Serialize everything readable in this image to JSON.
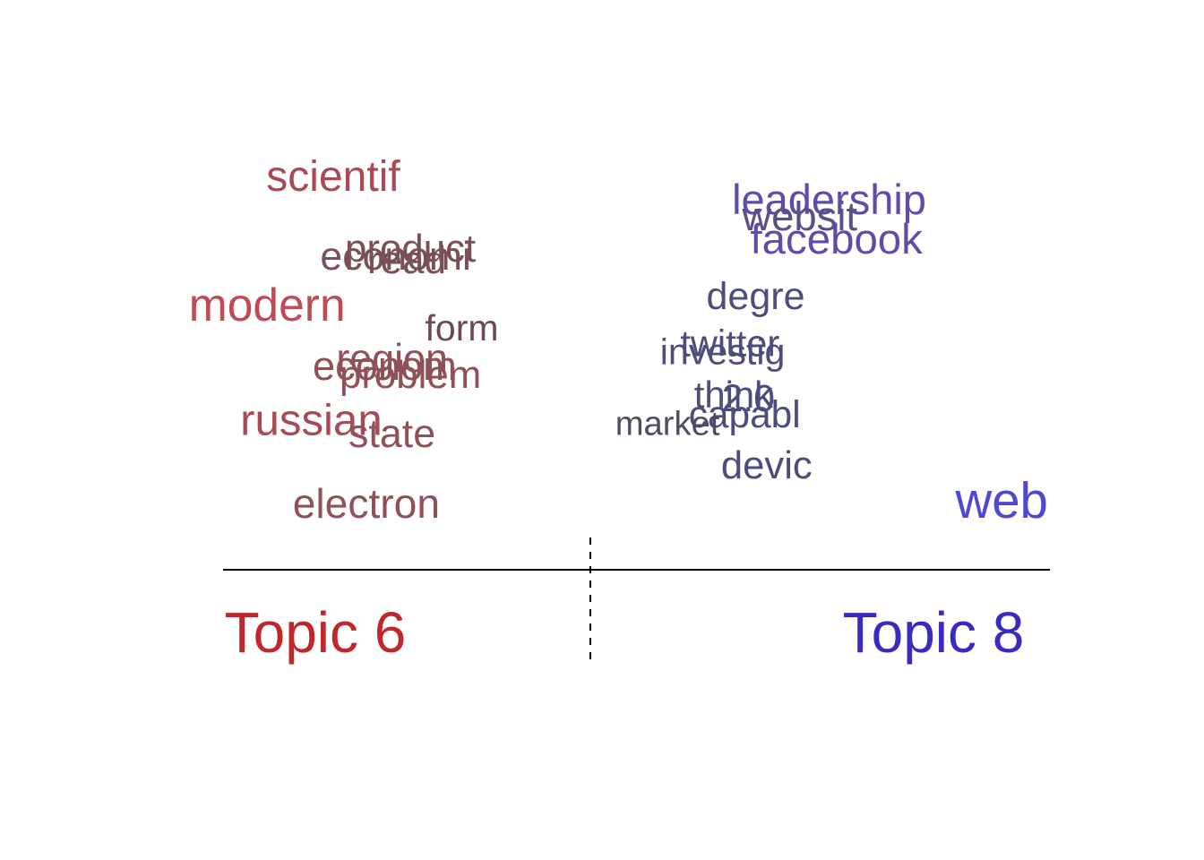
{
  "chart_data": {
    "type": "scatter",
    "description_kind": "word-contrast",
    "xlim": [
      -1,
      1
    ],
    "ylim": [
      0,
      1
    ],
    "grid": false,
    "topic_left": {
      "label": "Topic 6",
      "color": "#C0272D"
    },
    "topic_right": {
      "label": "Topic 8",
      "color": "#3A2BC0"
    },
    "words": [
      {
        "word": "scientif",
        "x": -0.7,
        "y": 0.88,
        "color": "#A84A55"
      },
      {
        "word": "leadership",
        "x": 0.65,
        "y": 0.82,
        "color": "#5A4EA8"
      },
      {
        "word": "websit",
        "x": 0.57,
        "y": 0.78,
        "color": "#565283"
      },
      {
        "word": "facebook",
        "x": 0.67,
        "y": 0.72,
        "color": "#5A4EA8"
      },
      {
        "word": "product",
        "x": -0.49,
        "y": 0.7,
        "color": "#7A5058"
      },
      {
        "word": "economi",
        "x": -0.53,
        "y": 0.68,
        "color": "#7A5058"
      },
      {
        "word": "read",
        "x": -0.5,
        "y": 0.67,
        "color": "#7A5058"
      },
      {
        "word": "degre",
        "x": 0.45,
        "y": 0.58,
        "color": "#4E4C7A"
      },
      {
        "word": "modern",
        "x": -0.88,
        "y": 0.55,
        "color": "#C04A55"
      },
      {
        "word": "form",
        "x": -0.35,
        "y": 0.5,
        "color": "#6A4C50"
      },
      {
        "word": "twitter",
        "x": 0.38,
        "y": 0.46,
        "color": "#4E4C7A"
      },
      {
        "word": "investig",
        "x": 0.36,
        "y": 0.44,
        "color": "#4E4C7A"
      },
      {
        "word": "region",
        "x": -0.54,
        "y": 0.42,
        "color": "#905058"
      },
      {
        "word": "econom",
        "x": -0.56,
        "y": 0.4,
        "color": "#905058"
      },
      {
        "word": "problem",
        "x": -0.49,
        "y": 0.38,
        "color": "#905058"
      },
      {
        "word": "think",
        "x": 0.39,
        "y": 0.33,
        "color": "#4E4C7A"
      },
      {
        "word": "2.0",
        "x": 0.43,
        "y": 0.32,
        "color": "#4E4C7A"
      },
      {
        "word": "capabl",
        "x": 0.42,
        "y": 0.28,
        "color": "#4E4C7A"
      },
      {
        "word": "market",
        "x": 0.21,
        "y": 0.26,
        "color": "#4E4C60"
      },
      {
        "word": "russian",
        "x": -0.76,
        "y": 0.26,
        "color": "#A84A55"
      },
      {
        "word": "state",
        "x": -0.54,
        "y": 0.23,
        "color": "#905058"
      },
      {
        "word": "devic",
        "x": 0.48,
        "y": 0.15,
        "color": "#4E4C7A"
      },
      {
        "word": "web",
        "x": 1.12,
        "y": 0.05,
        "color": "#4F48D0"
      },
      {
        "word": "electron",
        "x": -0.61,
        "y": 0.05,
        "color": "#905058"
      }
    ]
  }
}
